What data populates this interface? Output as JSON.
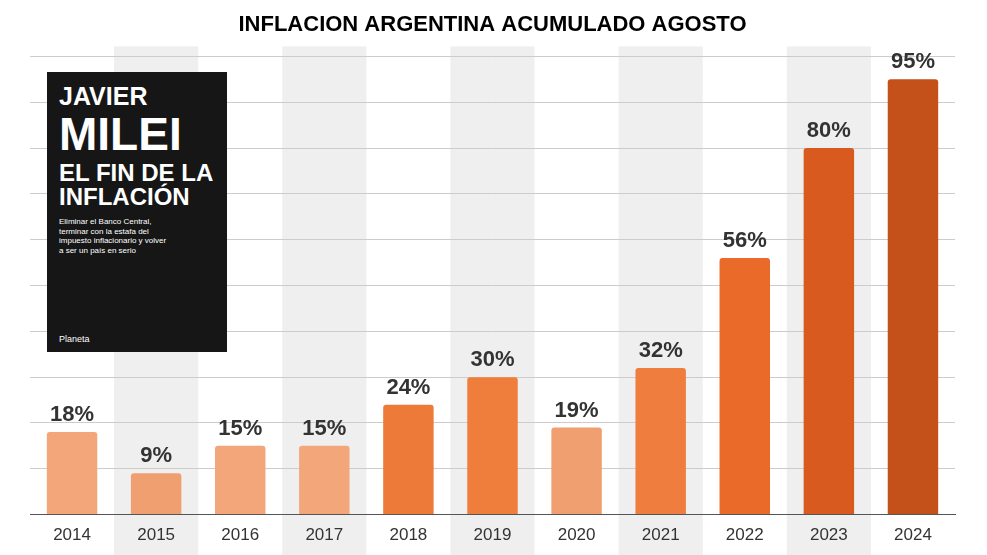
{
  "chart_data": {
    "type": "bar",
    "title": "INFLACION ARGENTINA ACUMULADO AGOSTO",
    "categories": [
      "2014",
      "2015",
      "2016",
      "2017",
      "2018",
      "2019",
      "2020",
      "2021",
      "2022",
      "2023",
      "2024"
    ],
    "values": [
      18,
      9,
      15,
      15,
      24,
      30,
      19,
      32,
      56,
      80,
      95
    ],
    "value_labels": [
      "18%",
      "9%",
      "15%",
      "15%",
      "24%",
      "30%",
      "19%",
      "32%",
      "56%",
      "80%",
      "95%"
    ],
    "colors": [
      "#f2a67a",
      "#f0a070",
      "#f2a67a",
      "#f2a67a",
      "#ee7a3a",
      "#ef7d3c",
      "#f0a070",
      "#ef7e3e",
      "#ea6a2a",
      "#d95a1e",
      "#c4501a"
    ],
    "ylim": [
      0,
      100
    ],
    "yticks": [
      0,
      10,
      20,
      30,
      40,
      50,
      60,
      70,
      80,
      90,
      100
    ],
    "grid": true,
    "data_labels": true,
    "tick_labels": "x",
    "annotations": [
      "JAVIER",
      "MILEI",
      "EL FIN DE LA",
      "INFLACIÓN",
      "Eliminar el Banco Central, terminar con la estafa del impuesto inflacionario y volver a ser un país en serio",
      "Planeta"
    ]
  }
}
